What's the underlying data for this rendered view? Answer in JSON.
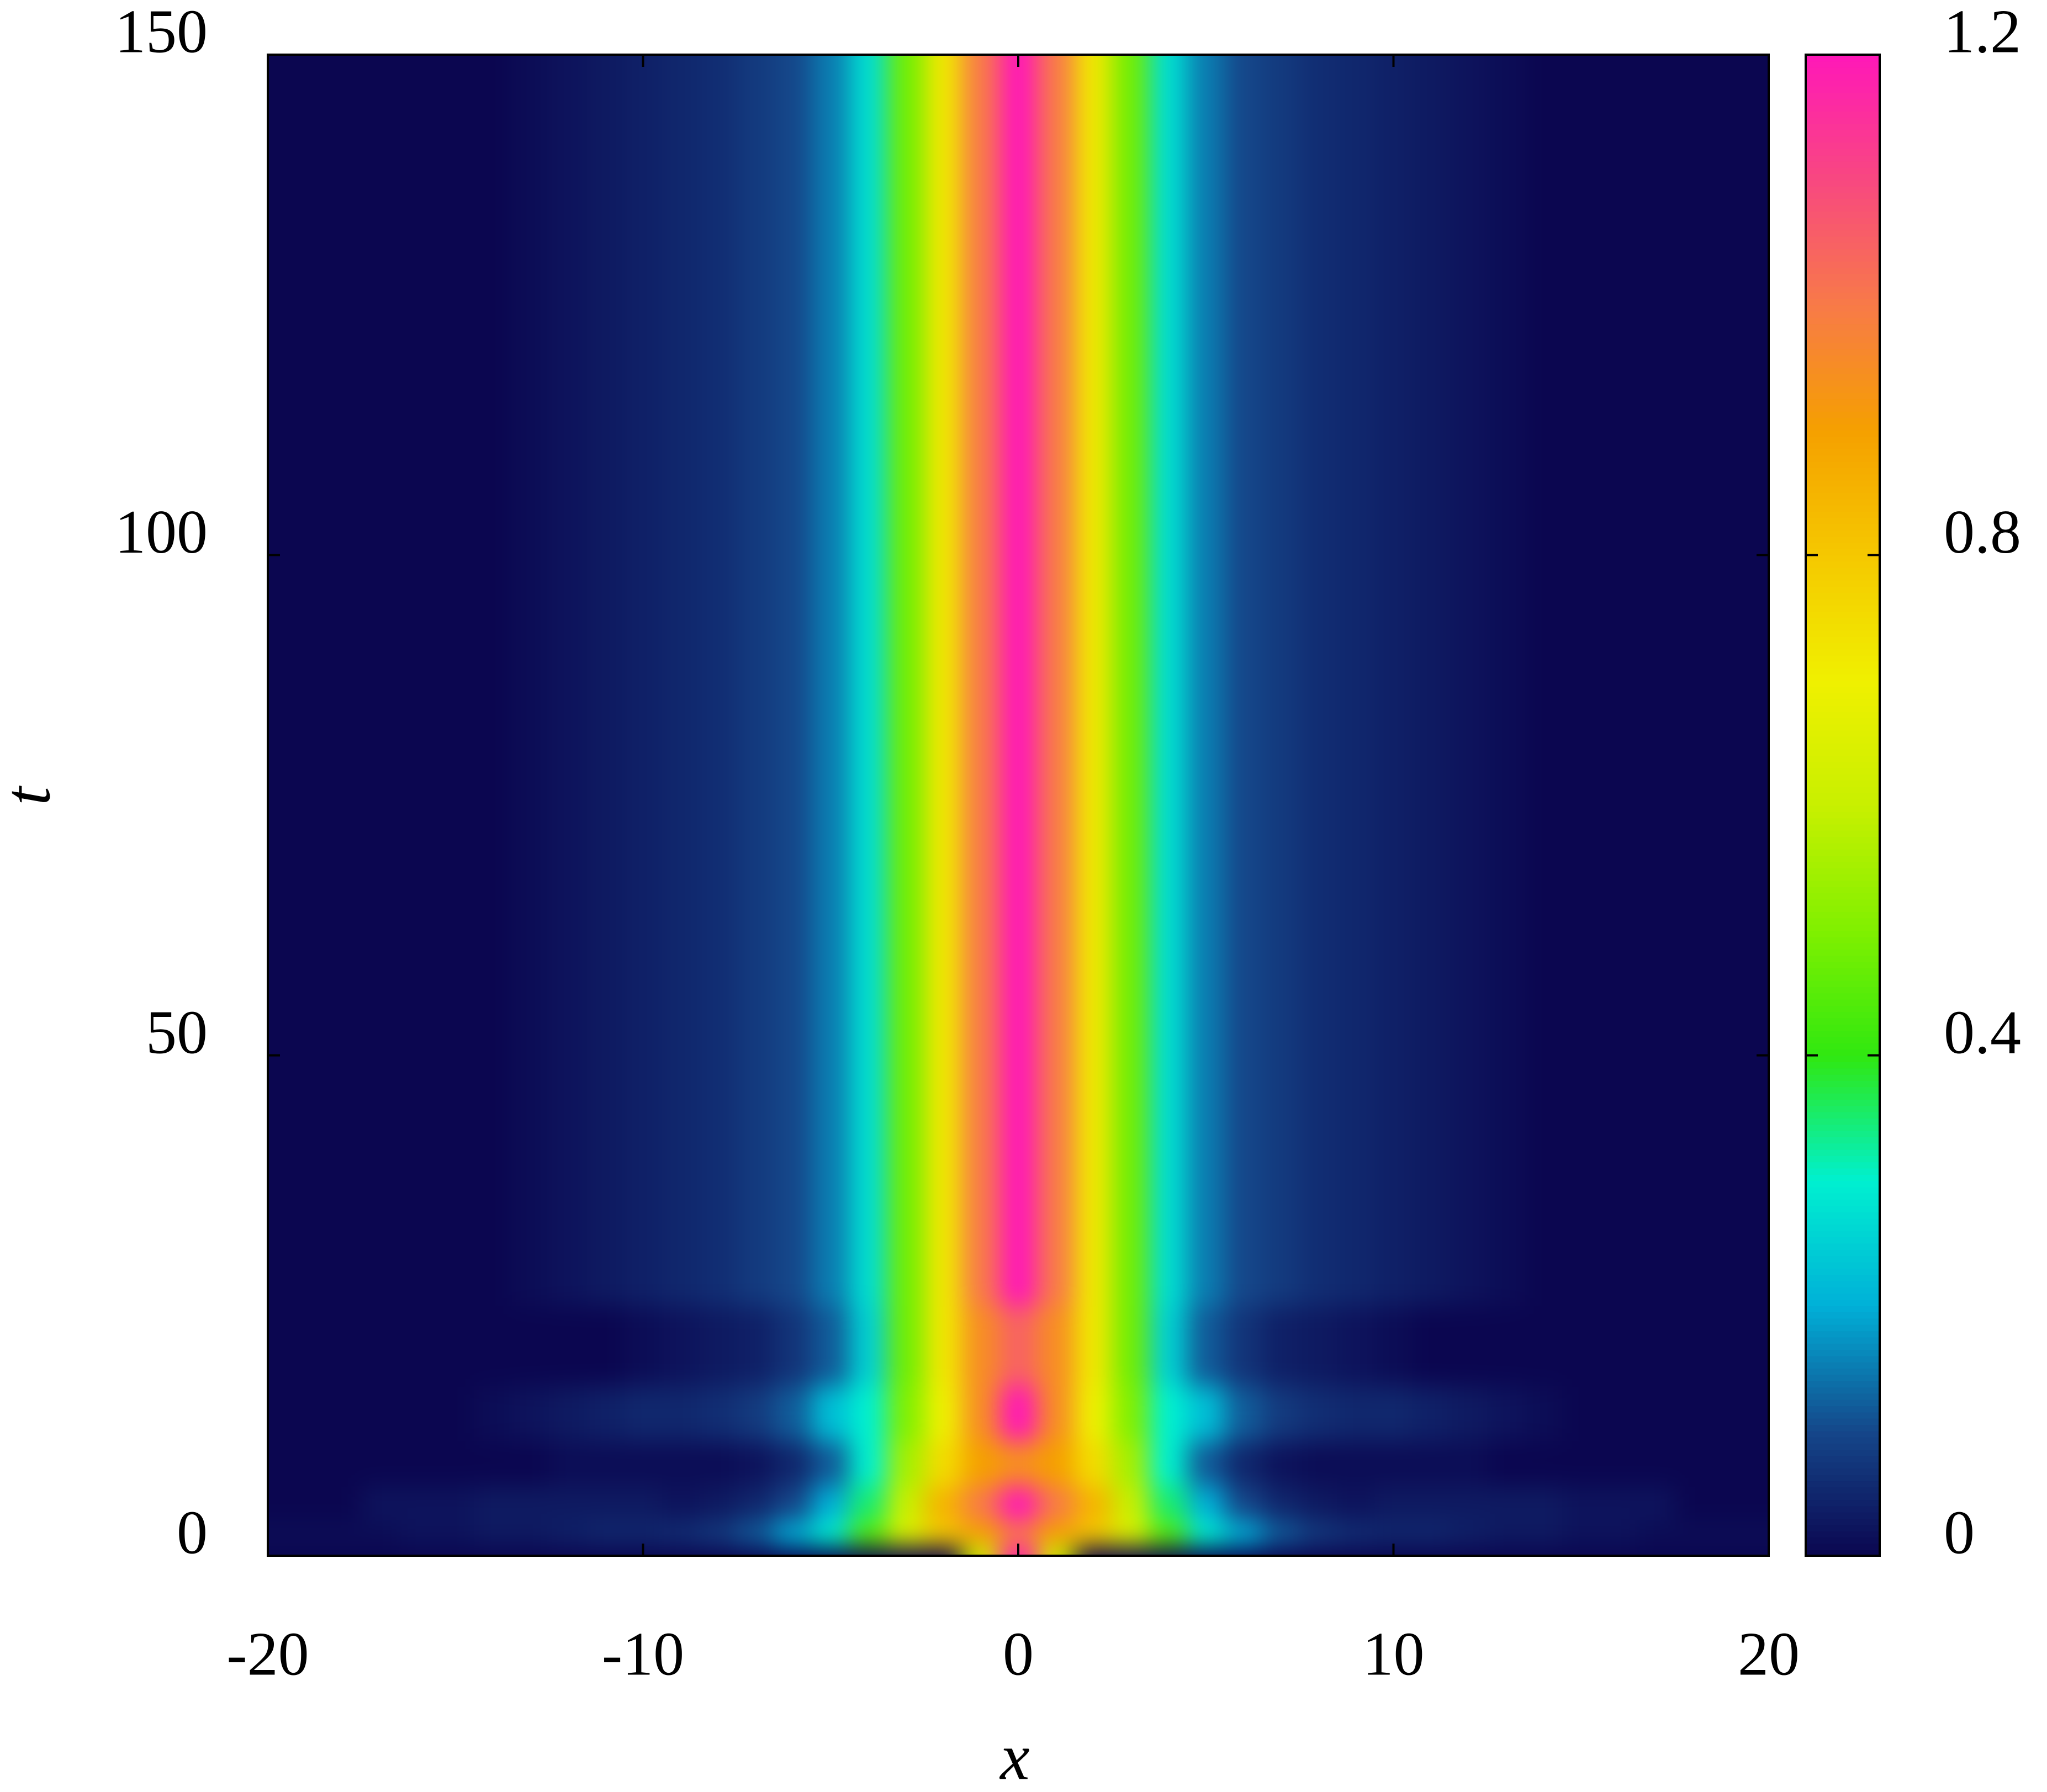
{
  "chart_data": {
    "type": "heatmap",
    "x_label": "x",
    "y_label": "t",
    "x": [
      -20,
      -19,
      -18,
      -17,
      -16,
      -15,
      -14,
      -13,
      -12,
      -11,
      -10,
      -9,
      -8,
      -7,
      -6,
      -5,
      -4,
      -3,
      -2,
      -1,
      0,
      1,
      2,
      3,
      4,
      5,
      6,
      7,
      8,
      9,
      10,
      11,
      12,
      13,
      14,
      15,
      16,
      17,
      18,
      19,
      20
    ],
    "y": [
      0,
      2,
      5,
      9,
      14,
      20,
      30,
      150
    ],
    "z": [
      [
        0,
        0,
        0,
        0,
        0,
        0,
        0,
        0,
        0,
        0,
        0,
        0,
        0,
        0,
        0,
        0,
        0,
        0,
        0,
        0.6,
        1.2,
        0.6,
        0,
        0,
        0,
        0,
        0,
        0,
        0,
        0,
        0,
        0,
        0,
        0,
        0,
        0,
        0,
        0,
        0,
        0,
        0
      ],
      [
        0.01,
        0.01,
        0.01,
        0.01,
        0.02,
        0.02,
        0.03,
        0.03,
        0.04,
        0.05,
        0.05,
        0.06,
        0.08,
        0.12,
        0.2,
        0.3,
        0.45,
        0.65,
        0.8,
        0.9,
        1.0,
        0.9,
        0.8,
        0.65,
        0.45,
        0.3,
        0.2,
        0.12,
        0.08,
        0.06,
        0.05,
        0.05,
        0.04,
        0.03,
        0.03,
        0.02,
        0.02,
        0.01,
        0.01,
        0.01,
        0.01
      ],
      [
        0,
        0,
        0,
        0.02,
        0.02,
        0.02,
        0.03,
        0.03,
        0.03,
        0.03,
        0.03,
        0.02,
        0.03,
        0.05,
        0.1,
        0.2,
        0.35,
        0.6,
        0.85,
        1.0,
        1.2,
        1.0,
        0.85,
        0.6,
        0.35,
        0.2,
        0.1,
        0.05,
        0.03,
        0.02,
        0.03,
        0.03,
        0.03,
        0.03,
        0.03,
        0.02,
        0.02,
        0.02,
        0,
        0,
        0
      ],
      [
        0,
        0,
        0,
        0,
        0,
        0,
        0,
        0,
        0.01,
        0.01,
        0.01,
        0.01,
        0.01,
        0.02,
        0.05,
        0.12,
        0.3,
        0.55,
        0.75,
        0.9,
        0.95,
        0.9,
        0.75,
        0.55,
        0.3,
        0.12,
        0.05,
        0.02,
        0.01,
        0.01,
        0.01,
        0.01,
        0.01,
        0,
        0,
        0,
        0,
        0,
        0,
        0,
        0
      ],
      [
        0,
        0,
        0,
        0,
        0,
        0,
        0.01,
        0.02,
        0.03,
        0.04,
        0.05,
        0.05,
        0.06,
        0.08,
        0.12,
        0.22,
        0.3,
        0.5,
        0.7,
        0.95,
        1.2,
        0.95,
        0.7,
        0.5,
        0.3,
        0.22,
        0.12,
        0.08,
        0.06,
        0.05,
        0.05,
        0.04,
        0.03,
        0.02,
        0.01,
        0,
        0,
        0,
        0,
        0,
        0
      ],
      [
        0,
        0,
        0,
        0,
        0,
        0,
        0,
        0,
        0,
        0,
        0.01,
        0.02,
        0.03,
        0.04,
        0.07,
        0.12,
        0.25,
        0.48,
        0.72,
        0.95,
        1.05,
        0.95,
        0.72,
        0.48,
        0.25,
        0.12,
        0.07,
        0.04,
        0.03,
        0.02,
        0.01,
        0,
        0,
        0,
        0,
        0,
        0,
        0,
        0,
        0,
        0
      ],
      [
        0,
        0,
        0,
        0,
        0,
        0,
        0,
        0.01,
        0.02,
        0.03,
        0.04,
        0.05,
        0.06,
        0.08,
        0.1,
        0.15,
        0.27,
        0.48,
        0.72,
        1,
        1.2,
        1,
        0.72,
        0.48,
        0.27,
        0.15,
        0.1,
        0.08,
        0.06,
        0.05,
        0.04,
        0.03,
        0.02,
        0.01,
        0,
        0,
        0,
        0,
        0,
        0,
        0
      ],
      [
        0,
        0,
        0,
        0,
        0,
        0,
        0,
        0.01,
        0.02,
        0.03,
        0.04,
        0.05,
        0.06,
        0.08,
        0.1,
        0.15,
        0.27,
        0.48,
        0.72,
        1,
        1.2,
        1,
        0.72,
        0.48,
        0.27,
        0.15,
        0.1,
        0.08,
        0.06,
        0.05,
        0.04,
        0.03,
        0.02,
        0.01,
        0,
        0,
        0,
        0,
        0,
        0,
        0
      ]
    ],
    "xlim": [
      -20,
      20
    ],
    "ylim": [
      0,
      150
    ],
    "xticks": [
      -20,
      -10,
      0,
      10,
      20
    ],
    "yticks": [
      0,
      50,
      100,
      150
    ],
    "zlim": [
      0,
      1.2
    ],
    "zticks": [
      0,
      0.4,
      0.8,
      1.2
    ],
    "colormap": [
      "#0b0650",
      "#15478a",
      "#00b0d8",
      "#00f0d0",
      "#30e810",
      "#80f000",
      "#c8f000",
      "#f0f000",
      "#f5c800",
      "#f5a000",
      "#f87a48",
      "#f84880",
      "#ff18b8"
    ],
    "colorbar": true
  }
}
